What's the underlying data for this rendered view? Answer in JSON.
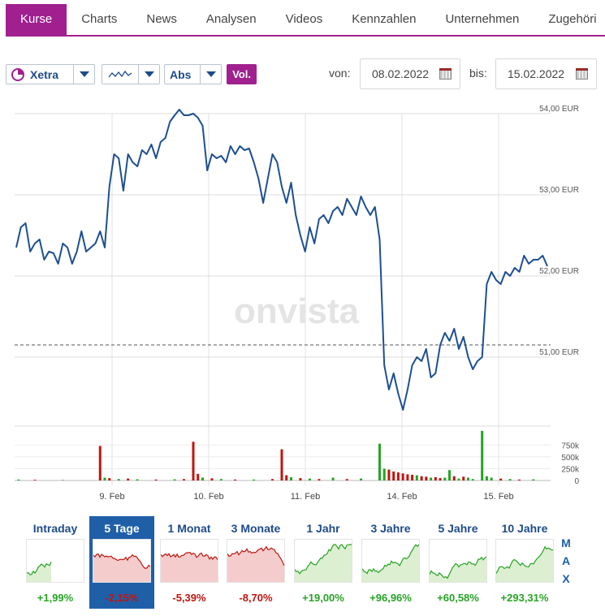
{
  "tabs": [
    "Kurse",
    "Charts",
    "News",
    "Analysen",
    "Videos",
    "Kennzahlen",
    "Unternehmen",
    "Zugehöri"
  ],
  "toolbar": {
    "exchange": "Xetra",
    "scale": "Abs",
    "volume_button": "Vol.",
    "from_label": "von:",
    "from_date": "08.02.2022",
    "to_label": "bis:",
    "to_date": "15.02.2022"
  },
  "watermark": "onvista",
  "colors": {
    "accent": "#a0208f",
    "line": "#1d4f91",
    "up": "#27a325",
    "down": "#c0150f",
    "selected": "#1f5fa8"
  },
  "chart_data": {
    "type": "line",
    "currency": "EUR",
    "y_ticks": [
      "54,00 EUR",
      "53,00 EUR",
      "52,00 EUR",
      "51,00 EUR"
    ],
    "y_values": [
      54,
      53,
      52,
      51
    ],
    "ylim": [
      50.15,
      54.1
    ],
    "reference_line": 51.15,
    "x_ticks": [
      "9. Feb",
      "10. Feb",
      "11. Feb",
      "14. Feb",
      "15. Feb"
    ],
    "price_series": [
      52.35,
      52.6,
      52.65,
      52.3,
      52.4,
      52.45,
      52.2,
      52.3,
      52.28,
      52.15,
      52.4,
      52.35,
      52.15,
      52.3,
      52.55,
      52.3,
      52.35,
      52.4,
      52.55,
      52.35,
      53.1,
      53.5,
      53.45,
      53.05,
      53.5,
      53.4,
      53.35,
      53.55,
      53.5,
      53.62,
      53.45,
      53.65,
      53.7,
      53.9,
      53.98,
      54.05,
      53.98,
      53.98,
      54.0,
      53.95,
      53.85,
      53.3,
      53.5,
      53.45,
      53.48,
      53.4,
      53.6,
      53.5,
      53.6,
      53.55,
      53.57,
      53.4,
      53.2,
      52.9,
      53.2,
      53.5,
      53.4,
      53.1,
      52.9,
      53.15,
      52.75,
      52.5,
      52.3,
      52.6,
      52.4,
      52.7,
      52.75,
      52.65,
      52.8,
      52.85,
      52.75,
      52.95,
      52.85,
      52.75,
      52.98,
      52.85,
      52.75,
      52.85,
      52.45,
      50.9,
      50.6,
      50.8,
      50.55,
      50.35,
      50.6,
      50.9,
      51.0,
      50.95,
      51.1,
      50.75,
      50.8,
      51.15,
      51.3,
      51.2,
      51.35,
      51.1,
      51.25,
      51.0,
      50.85,
      50.95,
      51.0,
      51.9,
      52.05,
      51.95,
      51.9,
      52.05,
      52.0,
      52.1,
      52.05,
      52.25,
      52.15,
      52.2,
      52.2,
      52.25,
      52.12
    ],
    "volume_ticks": [
      "750k",
      "500k",
      "250k",
      "0"
    ],
    "volume_bars": [
      {
        "x": 0.5,
        "v": 20,
        "c": "up"
      },
      {
        "x": 4,
        "v": 15,
        "c": "down"
      },
      {
        "x": 10,
        "v": 10,
        "c": "up"
      },
      {
        "x": 18,
        "v": 730,
        "c": "down"
      },
      {
        "x": 19,
        "v": 60,
        "c": "up"
      },
      {
        "x": 20,
        "v": 50,
        "c": "down"
      },
      {
        "x": 22,
        "v": 30,
        "c": "up"
      },
      {
        "x": 24,
        "v": 40,
        "c": "down"
      },
      {
        "x": 26,
        "v": 25,
        "c": "up"
      },
      {
        "x": 30,
        "v": 20,
        "c": "down"
      },
      {
        "x": 34,
        "v": 25,
        "c": "up"
      },
      {
        "x": 36,
        "v": 30,
        "c": "down"
      },
      {
        "x": 38,
        "v": 820,
        "c": "down"
      },
      {
        "x": 39,
        "v": 140,
        "c": "down"
      },
      {
        "x": 40,
        "v": 60,
        "c": "up"
      },
      {
        "x": 42,
        "v": 45,
        "c": "down"
      },
      {
        "x": 44,
        "v": 30,
        "c": "up"
      },
      {
        "x": 47,
        "v": 20,
        "c": "down"
      },
      {
        "x": 51,
        "v": 20,
        "c": "up"
      },
      {
        "x": 55,
        "v": 30,
        "c": "down"
      },
      {
        "x": 57,
        "v": 660,
        "c": "down"
      },
      {
        "x": 58,
        "v": 110,
        "c": "down"
      },
      {
        "x": 59,
        "v": 70,
        "c": "up"
      },
      {
        "x": 61,
        "v": 50,
        "c": "down"
      },
      {
        "x": 63,
        "v": 40,
        "c": "up"
      },
      {
        "x": 65,
        "v": 30,
        "c": "down"
      },
      {
        "x": 68,
        "v": 60,
        "c": "up"
      },
      {
        "x": 71,
        "v": 30,
        "c": "down"
      },
      {
        "x": 74,
        "v": 40,
        "c": "up"
      },
      {
        "x": 78,
        "v": 780,
        "c": "up"
      },
      {
        "x": 79,
        "v": 250,
        "c": "up"
      },
      {
        "x": 80,
        "v": 230,
        "c": "down"
      },
      {
        "x": 81,
        "v": 190,
        "c": "down"
      },
      {
        "x": 82,
        "v": 170,
        "c": "down"
      },
      {
        "x": 83,
        "v": 150,
        "c": "down"
      },
      {
        "x": 84,
        "v": 130,
        "c": "down"
      },
      {
        "x": 85,
        "v": 120,
        "c": "down"
      },
      {
        "x": 86,
        "v": 110,
        "c": "up"
      },
      {
        "x": 87,
        "v": 90,
        "c": "down"
      },
      {
        "x": 88,
        "v": 80,
        "c": "down"
      },
      {
        "x": 89,
        "v": 60,
        "c": "up"
      },
      {
        "x": 90,
        "v": 70,
        "c": "down"
      },
      {
        "x": 91,
        "v": 50,
        "c": "down"
      },
      {
        "x": 92,
        "v": 60,
        "c": "up"
      },
      {
        "x": 93,
        "v": 220,
        "c": "up"
      },
      {
        "x": 94,
        "v": 90,
        "c": "down"
      },
      {
        "x": 95,
        "v": 40,
        "c": "up"
      },
      {
        "x": 96,
        "v": 80,
        "c": "down"
      },
      {
        "x": 97,
        "v": 60,
        "c": "up"
      },
      {
        "x": 98,
        "v": 30,
        "c": "up"
      },
      {
        "x": 100,
        "v": 1050,
        "c": "up"
      },
      {
        "x": 101,
        "v": 90,
        "c": "up"
      },
      {
        "x": 102,
        "v": 60,
        "c": "up"
      },
      {
        "x": 104,
        "v": 40,
        "c": "down"
      },
      {
        "x": 106,
        "v": 30,
        "c": "up"
      },
      {
        "x": 108,
        "v": 20,
        "c": "down"
      },
      {
        "x": 111,
        "v": 25,
        "c": "up"
      }
    ]
  },
  "periods": [
    {
      "label": "Intraday",
      "value": "+1,99%",
      "trend": "up",
      "selected": false
    },
    {
      "label": "5 Tage",
      "value": "-2,15%",
      "trend": "down",
      "selected": true
    },
    {
      "label": "1 Monat",
      "value": "-5,39%",
      "trend": "down",
      "selected": false
    },
    {
      "label": "3 Monate",
      "value": "-8,70%",
      "trend": "down",
      "selected": false
    },
    {
      "label": "1 Jahr",
      "value": "+19,00%",
      "trend": "up",
      "selected": false
    },
    {
      "label": "3 Jahre",
      "value": "+96,96%",
      "trend": "up",
      "selected": false
    },
    {
      "label": "5 Jahre",
      "value": "+60,58%",
      "trend": "up",
      "selected": false
    },
    {
      "label": "10 Jahre",
      "value": "+293,31%",
      "trend": "up",
      "selected": false
    }
  ],
  "max_label": [
    "M",
    "A",
    "X"
  ]
}
